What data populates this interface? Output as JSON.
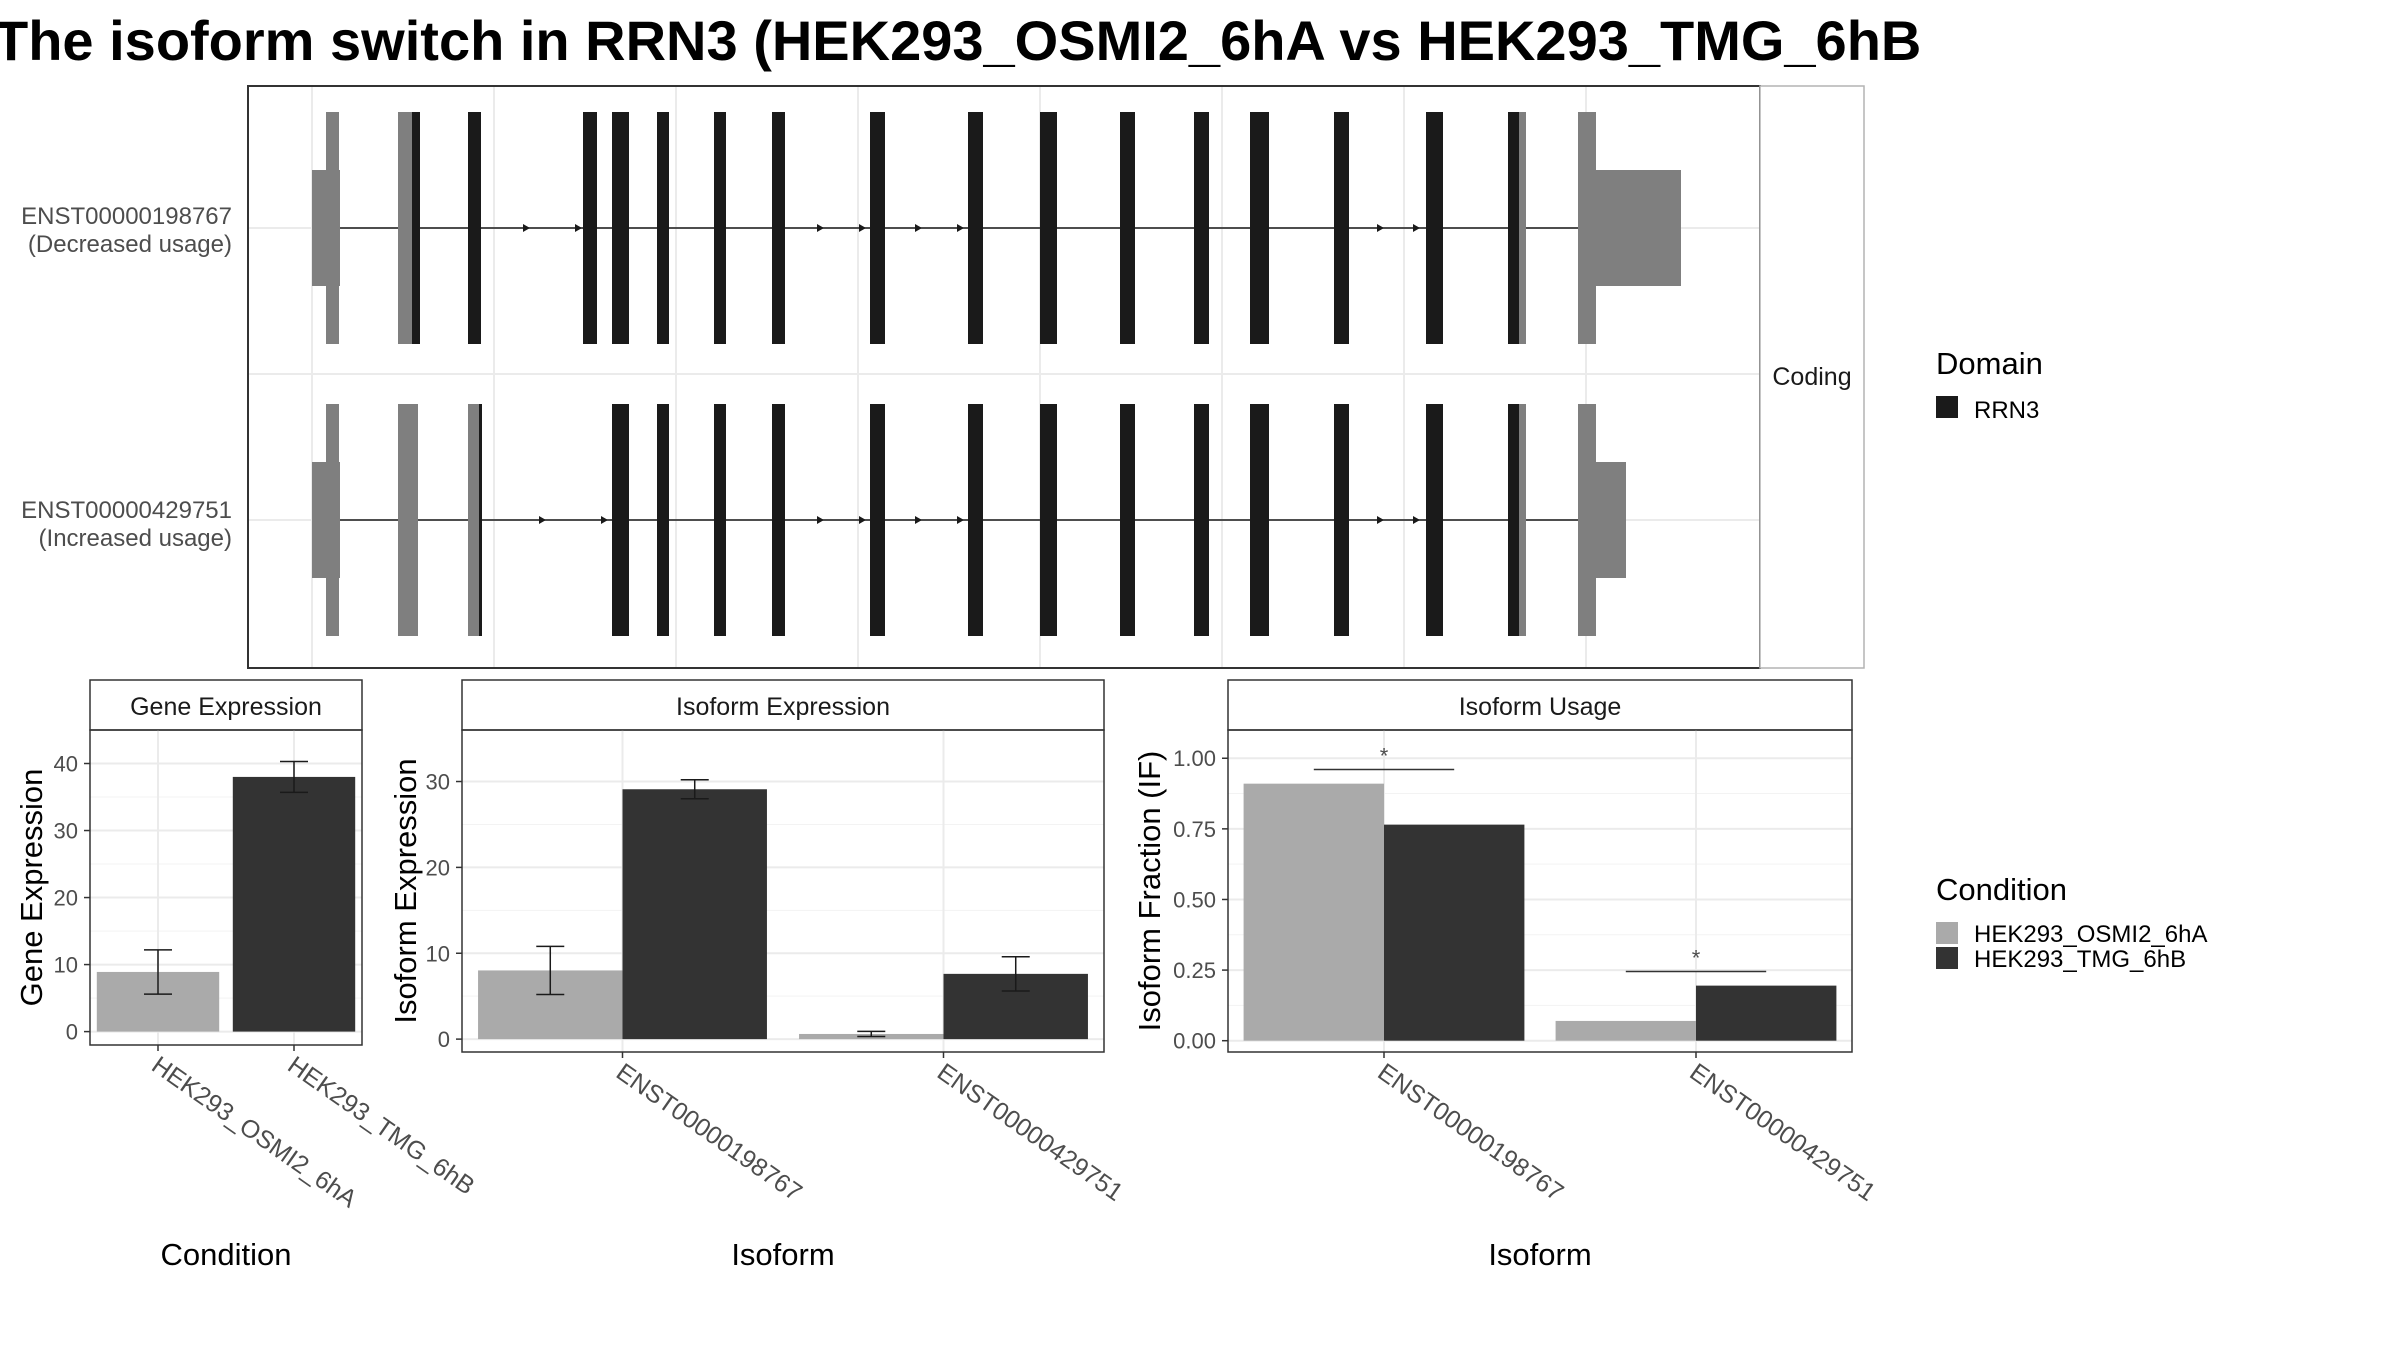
{
  "title": "The isoform switch in RRN3 (HEK293_OSMI2_6hA vs HEK293_TMG_6hB",
  "structure_panel": {
    "facet_label": "Coding",
    "transcripts": [
      {
        "id": "ENST00000198767",
        "usage": "(Decreased usage)"
      },
      {
        "id": "ENST00000429751",
        "usage": "(Increased usage)"
      }
    ]
  },
  "domain_legend": {
    "title": "Domain",
    "items": [
      {
        "label": "RRN3",
        "color": "#1a1a1a"
      }
    ]
  },
  "condition_legend": {
    "title": "Condition",
    "items": [
      {
        "label": "HEK293_OSMI2_6hA",
        "color": "#aaaaaa"
      },
      {
        "label": "HEK293_TMG_6hB",
        "color": "#333333"
      }
    ]
  },
  "colors": {
    "utr": "#7f7f7f",
    "cds": "#1a1a1a",
    "cond_a": "#aaaaaa",
    "cond_b": "#333333"
  },
  "chart_data": [
    {
      "type": "bar",
      "title": "Gene Expression",
      "xlabel": "Condition",
      "ylabel": "Gene Expression",
      "ylim": [
        -2,
        45
      ],
      "yticks": [
        0,
        10,
        20,
        30,
        40
      ],
      "categories": [
        "HEK293_OSMI2_6hA",
        "HEK293_TMG_6hB"
      ],
      "values": [
        8.9,
        38.0
      ],
      "error": [
        [
          5.6,
          12.2
        ],
        [
          35.7,
          40.3
        ]
      ],
      "significance": []
    },
    {
      "type": "bar",
      "title": "Isoform Expression",
      "xlabel": "Isoform",
      "ylabel": "Isoform Expression",
      "ylim": [
        -1.5,
        36
      ],
      "yticks": [
        0,
        10,
        20,
        30
      ],
      "categories": [
        "ENST00000198767",
        "ENST00000429751"
      ],
      "series": [
        {
          "name": "HEK293_OSMI2_6hA",
          "values": [
            8.0,
            0.6
          ],
          "error": [
            [
              5.2,
              10.8
            ],
            [
              0.3,
              0.9
            ]
          ]
        },
        {
          "name": "HEK293_TMG_6hB",
          "values": [
            29.1,
            7.6
          ],
          "error": [
            [
              28.0,
              30.2
            ],
            [
              5.6,
              9.6
            ]
          ]
        }
      ],
      "significance": []
    },
    {
      "type": "bar",
      "title": "Isoform Usage",
      "xlabel": "Isoform",
      "ylabel": "Isoform Fraction (IF)",
      "ylim": [
        -0.04,
        1.1
      ],
      "yticks": [
        0.0,
        0.25,
        0.5,
        0.75,
        1.0
      ],
      "ytick_labels": [
        "0.00",
        "0.25",
        "0.50",
        "0.75",
        "1.00"
      ],
      "categories": [
        "ENST00000198767",
        "ENST00000429751"
      ],
      "series": [
        {
          "name": "HEK293_OSMI2_6hA",
          "values": [
            0.91,
            0.07
          ]
        },
        {
          "name": "HEK293_TMG_6hB",
          "values": [
            0.765,
            0.195
          ]
        }
      ],
      "significance": [
        {
          "category_index": 0,
          "label": "*",
          "level": 0.96
        },
        {
          "category_index": 1,
          "label": "*",
          "level": 0.245
        }
      ]
    }
  ]
}
